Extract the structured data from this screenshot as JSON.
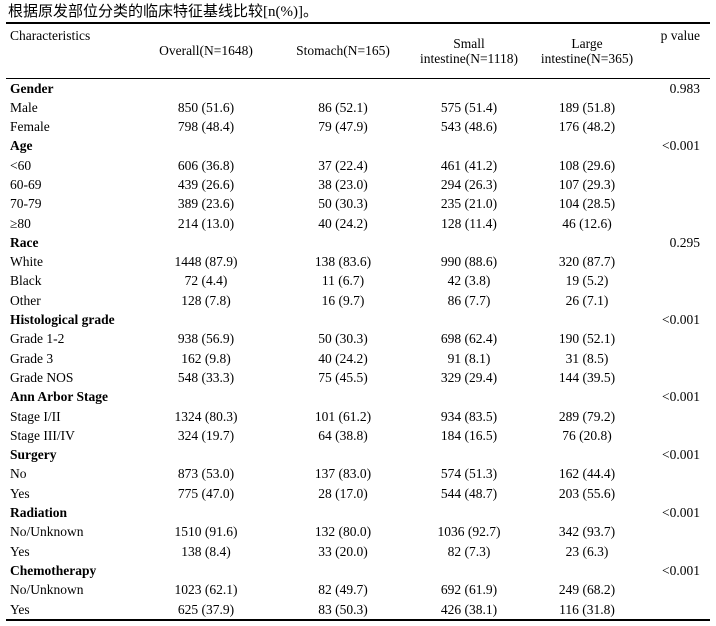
{
  "caption": "根据原发部位分类的临床特征基线比较[n(%)]。",
  "table": {
    "col_headers": {
      "characteristics": "Characteristics",
      "groups": [
        "Overall(N=1648)",
        "Stomach(N=165)",
        "Small intestine(N=1118)",
        "Large intestine(N=365)"
      ],
      "p_value": "p value"
    },
    "sections": [
      {
        "name": "Gender",
        "p": "0.983",
        "rows": [
          {
            "label": "Male",
            "values": [
              "850 (51.6)",
              "86 (52.1)",
              "575 (51.4)",
              "189 (51.8)"
            ]
          },
          {
            "label": "Female",
            "values": [
              "798 (48.4)",
              "79 (47.9)",
              "543 (48.6)",
              "176 (48.2)"
            ]
          }
        ]
      },
      {
        "name": "Age",
        "p": "<0.001",
        "rows": [
          {
            "label": "<60",
            "values": [
              "606 (36.8)",
              "37 (22.4)",
              "461 (41.2)",
              "108 (29.6)"
            ]
          },
          {
            "label": "60-69",
            "values": [
              "439 (26.6)",
              "38 (23.0)",
              "294 (26.3)",
              "107 (29.3)"
            ]
          },
          {
            "label": "70-79",
            "values": [
              "389 (23.6)",
              "50 (30.3)",
              "235 (21.0)",
              "104 (28.5)"
            ]
          },
          {
            "label": "≥80",
            "values": [
              "214 (13.0)",
              "40 (24.2)",
              "128 (11.4)",
              "46 (12.6)"
            ]
          }
        ]
      },
      {
        "name": "Race",
        "p": "0.295",
        "rows": [
          {
            "label": "White",
            "values": [
              "1448 (87.9)",
              "138 (83.6)",
              "990 (88.6)",
              "320 (87.7)"
            ]
          },
          {
            "label": "Black",
            "values": [
              "72 (4.4)",
              "11 (6.7)",
              "42 (3.8)",
              "19 (5.2)"
            ]
          },
          {
            "label": "Other",
            "values": [
              "128 (7.8)",
              "16 (9.7)",
              "86 (7.7)",
              "26 (7.1)"
            ]
          }
        ]
      },
      {
        "name": "Histological grade",
        "p": "<0.001",
        "rows": [
          {
            "label": "Grade 1-2",
            "values": [
              "938 (56.9)",
              "50 (30.3)",
              "698 (62.4)",
              "190 (52.1)"
            ]
          },
          {
            "label": "Grade 3",
            "values": [
              "162 (9.8)",
              "40 (24.2)",
              "91 (8.1)",
              "31 (8.5)"
            ]
          },
          {
            "label": "Grade NOS",
            "values": [
              "548 (33.3)",
              "75 (45.5)",
              "329 (29.4)",
              "144 (39.5)"
            ]
          }
        ]
      },
      {
        "name": "Ann Arbor Stage",
        "p": "<0.001",
        "rows": [
          {
            "label": "Stage I/II",
            "values": [
              "1324 (80.3)",
              "101 (61.2)",
              "934 (83.5)",
              "289 (79.2)"
            ]
          },
          {
            "label": "Stage III/IV",
            "values": [
              "324 (19.7)",
              "64 (38.8)",
              "184 (16.5)",
              "76 (20.8)"
            ]
          }
        ]
      },
      {
        "name": "Surgery",
        "p": "<0.001",
        "rows": [
          {
            "label": "No",
            "values": [
              "873 (53.0)",
              "137 (83.0)",
              "574 (51.3)",
              "162 (44.4)"
            ]
          },
          {
            "label": "Yes",
            "values": [
              "775 (47.0)",
              "28 (17.0)",
              "544 (48.7)",
              "203 (55.6)"
            ]
          }
        ]
      },
      {
        "name": "Radiation",
        "p": "<0.001",
        "rows": [
          {
            "label": "No/Unknown",
            "values": [
              "1510 (91.6)",
              "132 (80.0)",
              "1036 (92.7)",
              "342 (93.7)"
            ]
          },
          {
            "label": "Yes",
            "values": [
              "138 (8.4)",
              "33 (20.0)",
              "82 (7.3)",
              "23 (6.3)"
            ]
          }
        ]
      },
      {
        "name": "Chemotherapy",
        "p": "<0.001",
        "rows": [
          {
            "label": "No/Unknown",
            "values": [
              "1023 (62.1)",
              "82 (49.7)",
              "692 (61.9)",
              "249 (68.2)"
            ]
          },
          {
            "label": "Yes",
            "values": [
              "625 (37.9)",
              "83 (50.3)",
              "426 (38.1)",
              "116 (31.8)"
            ]
          }
        ]
      }
    ]
  }
}
